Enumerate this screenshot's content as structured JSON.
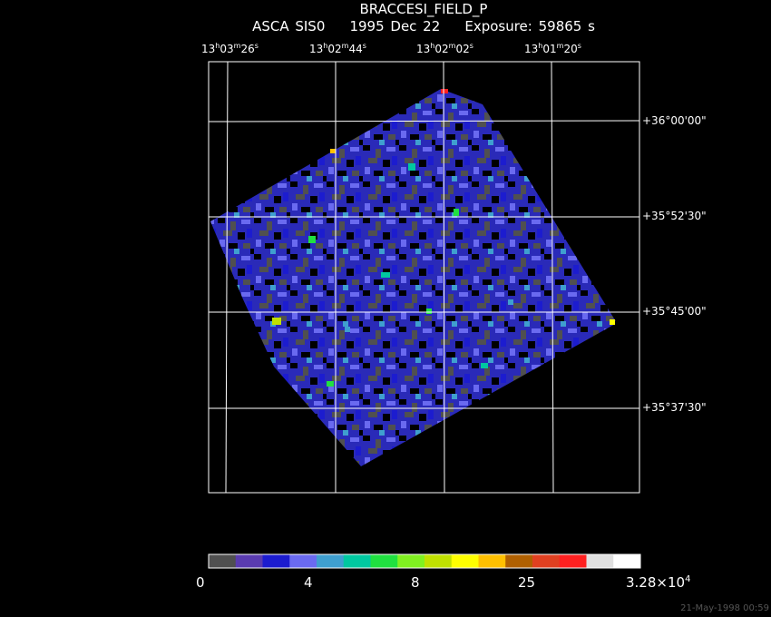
{
  "title": "BRACCESI_FIELD_P",
  "subtitle": "ASCA SIS0    1995 Dec 22    Exposure: 59865 s",
  "ra_labels": [
    {
      "h": "13",
      "m": "03",
      "s": "26"
    },
    {
      "h": "13",
      "m": "02",
      "s": "44"
    },
    {
      "h": "13",
      "m": "02",
      "s": "02"
    },
    {
      "h": "13",
      "m": "01",
      "s": "20"
    }
  ],
  "dec_labels": [
    "+36°00'00\"",
    "+35°52'30\"",
    "+35°45'00\"",
    "+35°37'30\""
  ],
  "colorbar": {
    "colors": [
      "#505050",
      "#5a3bb0",
      "#1c1ccf",
      "#6a6af0",
      "#3f9fcf",
      "#00c8a0",
      "#20e040",
      "#80f020",
      "#c0e000",
      "#ffff00",
      "#ffc000",
      "#b06000",
      "#e04020",
      "#ff2020",
      "#e0e0e0",
      "#ffffff"
    ],
    "tick_labels": [
      "0",
      "4",
      "8",
      "25"
    ],
    "max_base": "3.28×10",
    "max_exp": "4"
  },
  "timestamp": "21-May-1998 00:59"
}
